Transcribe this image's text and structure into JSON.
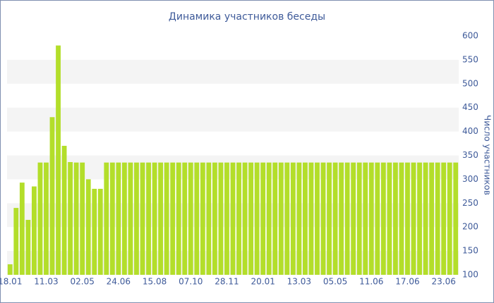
{
  "chart_data": {
    "type": "bar",
    "title": "Динамика участников беседы",
    "y_label": "Число участников",
    "categories": [
      "18.01",
      null,
      null,
      null,
      null,
      null,
      "11.03",
      null,
      null,
      null,
      null,
      null,
      "02.05",
      null,
      null,
      null,
      null,
      null,
      "24.06",
      null,
      null,
      null,
      null,
      null,
      "15.08",
      null,
      null,
      null,
      null,
      null,
      "07.10",
      null,
      null,
      null,
      null,
      null,
      "28.11",
      null,
      null,
      null,
      null,
      null,
      "20.01",
      null,
      null,
      null,
      null,
      null,
      "13.03",
      null,
      null,
      null,
      null,
      null,
      "05.05",
      null,
      null,
      null,
      null,
      null,
      "11.06",
      null,
      null,
      null,
      null,
      null,
      "17.06",
      null,
      null,
      null,
      null,
      null,
      "23.06",
      null,
      null
    ],
    "values": [
      122,
      240,
      293,
      215,
      285,
      335,
      335,
      430,
      580,
      370,
      336,
      335,
      335,
      300,
      280,
      280,
      335,
      335,
      335,
      335,
      335,
      335,
      335,
      335,
      335,
      335,
      335,
      335,
      335,
      335,
      335,
      335,
      335,
      335,
      335,
      335,
      335,
      335,
      335,
      335,
      335,
      335,
      335,
      335,
      335,
      335,
      335,
      335,
      335,
      335,
      335,
      335,
      335,
      335,
      335,
      335,
      335,
      335,
      335,
      335,
      335,
      335,
      335,
      335,
      335,
      335,
      335,
      335,
      335,
      335,
      335,
      335,
      335,
      335,
      335
    ],
    "color": "#b3de2a",
    "ylim": [
      100,
      600
    ],
    "yticks": [
      100,
      150,
      200,
      250,
      300,
      350,
      400,
      450,
      500,
      550,
      600
    ],
    "y_axis_side": "right",
    "grid_bands": true
  }
}
